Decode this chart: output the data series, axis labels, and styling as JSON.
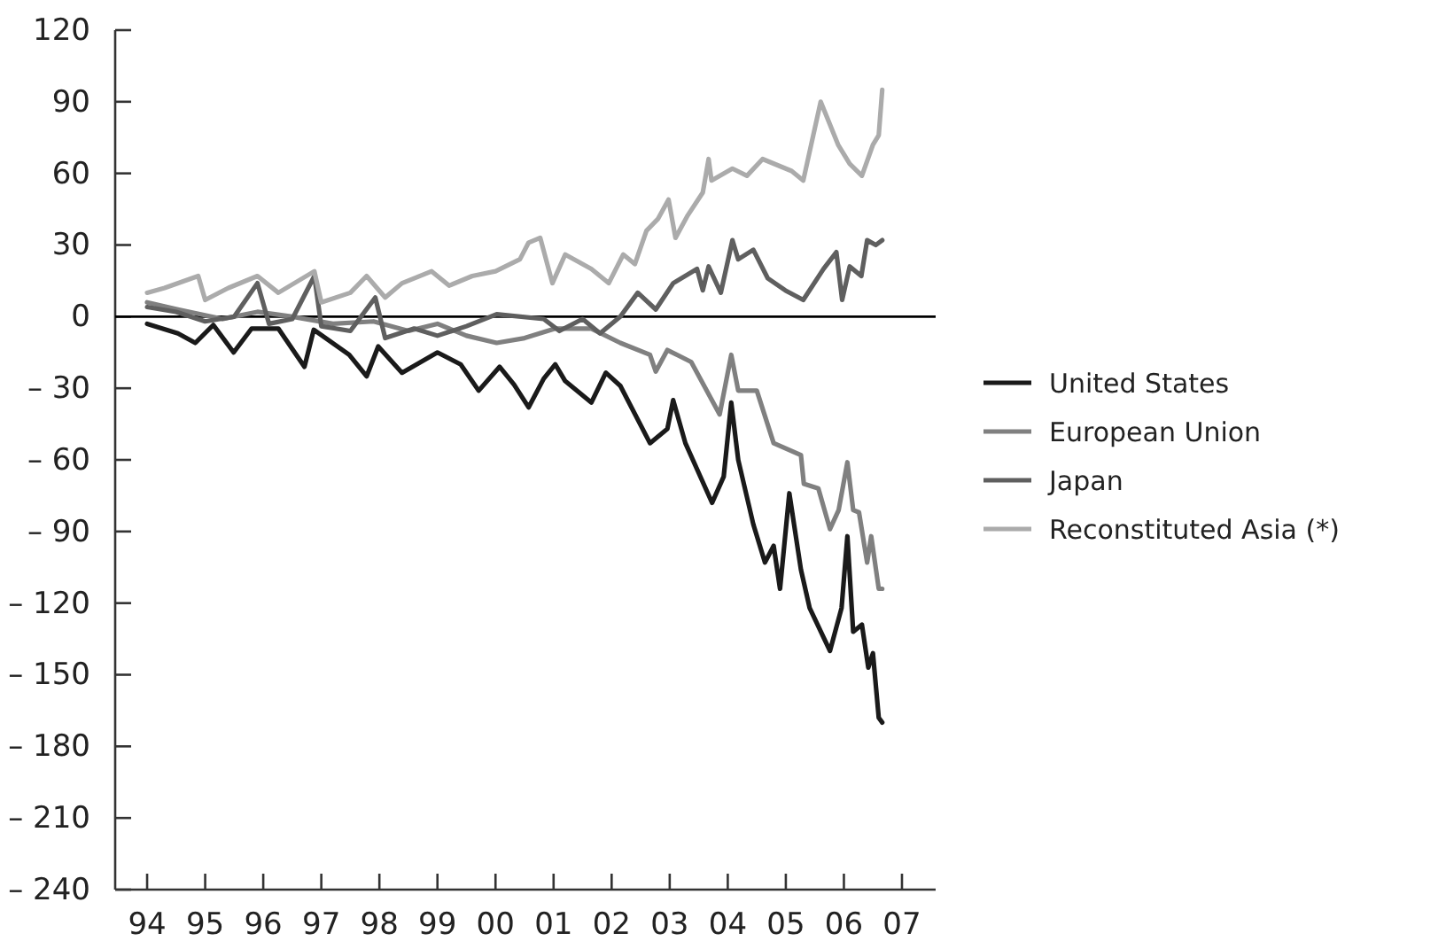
{
  "chart_data": {
    "type": "line",
    "xlim": [
      1993.45,
      2007.58
    ],
    "ylim": [
      -240,
      120
    ],
    "xticks": [
      {
        "value": 1994,
        "label": "94"
      },
      {
        "value": 1995,
        "label": "95"
      },
      {
        "value": 1996,
        "label": "96"
      },
      {
        "value": 1997,
        "label": "97"
      },
      {
        "value": 1998,
        "label": "98"
      },
      {
        "value": 1999,
        "label": "99"
      },
      {
        "value": 2000,
        "label": "00"
      },
      {
        "value": 2001,
        "label": "01"
      },
      {
        "value": 2002,
        "label": "02"
      },
      {
        "value": 2003,
        "label": "03"
      },
      {
        "value": 2004,
        "label": "04"
      },
      {
        "value": 2005,
        "label": "05"
      },
      {
        "value": 2006,
        "label": "06"
      },
      {
        "value": 2007,
        "label": "07"
      }
    ],
    "yticks": [
      {
        "value": -240,
        "label": "– 240"
      },
      {
        "value": -210,
        "label": "– 210"
      },
      {
        "value": -180,
        "label": "– 180"
      },
      {
        "value": -150,
        "label": "– 150"
      },
      {
        "value": -120,
        "label": "– 120"
      },
      {
        "value": -90,
        "label": "– 90"
      },
      {
        "value": -60,
        "label": "– 60"
      },
      {
        "value": -30,
        "label": "– 30"
      },
      0,
      30,
      60,
      90,
      120
    ],
    "ref_lines": [
      {
        "axis": "y",
        "value": 0,
        "color": "#000000"
      }
    ],
    "grid": false,
    "legend": "right",
    "line_style": "solid",
    "marker": "none",
    "series": [
      {
        "name": "United States",
        "color": "#1a1a1a",
        "x": [
          1994.0,
          1994.53,
          1994.83,
          1995.14,
          1995.49,
          1995.8,
          1996.26,
          1996.4,
          1996.71,
          1996.87,
          1997.48,
          1997.78,
          1997.98,
          1998.39,
          1999.0,
          1999.4,
          1999.71,
          2000.07,
          2000.32,
          2000.57,
          2000.83,
          2001.03,
          2001.2,
          2001.65,
          2001.9,
          2002.15,
          2002.66,
          2002.96,
          2003.06,
          2003.27,
          2003.73,
          2003.93,
          2004.06,
          2004.18,
          2004.44,
          2004.64,
          2004.79,
          2004.9,
          2005.06,
          2005.26,
          2005.41,
          2005.76,
          2005.96,
          2006.06,
          2006.16,
          2006.31,
          2006.42,
          2006.5,
          2006.6,
          2006.66
        ],
        "values": [
          -3,
          -7,
          -11,
          -3.5,
          -15,
          -5,
          -5,
          -10,
          -21,
          -5.5,
          -16,
          -25,
          -12.5,
          -23.5,
          -15,
          -20,
          -31,
          -21,
          -28.5,
          -38,
          -26,
          -20,
          -27,
          -36,
          -23.5,
          -29,
          -53,
          -47,
          -35,
          -53,
          -78,
          -67,
          -36,
          -60,
          -87,
          -103,
          -96,
          -114,
          -74,
          -106,
          -122,
          -140,
          -122,
          -92,
          -132,
          -129,
          -147,
          -141,
          -168,
          -170
        ]
      },
      {
        "name": "European Union",
        "color": "#808080",
        "x": [
          1994.0,
          1994.53,
          1995.3,
          1995.9,
          1996.5,
          1997.2,
          1997.9,
          1998.5,
          1999.0,
          1999.5,
          2000.02,
          2000.5,
          2001.03,
          2001.65,
          2002.15,
          2002.66,
          2002.76,
          2002.96,
          2003.37,
          2003.86,
          2004.06,
          2004.18,
          2004.5,
          2004.79,
          2005.26,
          2005.31,
          2005.56,
          2005.76,
          2005.91,
          2006.06,
          2006.16,
          2006.26,
          2006.4,
          2006.47,
          2006.6,
          2006.66
        ],
        "values": [
          6,
          3,
          -1,
          2,
          0,
          -3,
          -2,
          -6,
          -3,
          -8,
          -11,
          -9,
          -5,
          -5,
          -11,
          -16,
          -23,
          -14,
          -19,
          -41,
          -16,
          -31,
          -31,
          -53,
          -58,
          -70,
          -72,
          -89,
          -81,
          -61,
          -81,
          -82,
          -103,
          -92,
          -114,
          -114
        ]
      },
      {
        "name": "Japan",
        "color": "#5f5f5f",
        "x": [
          1994.0,
          1994.5,
          1995.0,
          1995.5,
          1995.9,
          1996.1,
          1996.5,
          1996.88,
          1997.0,
          1997.5,
          1997.93,
          1998.1,
          1998.6,
          1999.0,
          1999.5,
          2000.02,
          2000.83,
          2001.1,
          2001.5,
          2001.8,
          2002.15,
          2002.45,
          2002.76,
          2003.06,
          2003.47,
          2003.57,
          2003.67,
          2003.88,
          2004.08,
          2004.18,
          2004.44,
          2004.69,
          2004.99,
          2005.3,
          2005.65,
          2005.87,
          2005.97,
          2006.1,
          2006.3,
          2006.4,
          2006.55,
          2006.66
        ],
        "values": [
          4,
          2,
          -2,
          0,
          14,
          -3,
          -1,
          17,
          -4,
          -6,
          8,
          -9,
          -5,
          -8,
          -4,
          1,
          -1,
          -6,
          -1,
          -7,
          0,
          10,
          3,
          14,
          20,
          11,
          21,
          10,
          32,
          24,
          28,
          16,
          11,
          7,
          20,
          27,
          7,
          21,
          17,
          32,
          30,
          32
        ]
      },
      {
        "name": "Reconstituted Asia (*)",
        "color": "#ababab",
        "x": [
          1994.0,
          1994.3,
          1994.88,
          1995.0,
          1995.4,
          1995.9,
          1996.26,
          1996.88,
          1997.0,
          1997.5,
          1997.78,
          1998.1,
          1998.39,
          1998.9,
          1999.2,
          1999.6,
          2000.0,
          2000.42,
          2000.57,
          2000.77,
          2000.98,
          2001.2,
          2001.65,
          2001.95,
          2002.2,
          2002.4,
          2002.6,
          2002.8,
          2002.98,
          2003.1,
          2003.3,
          2003.57,
          2003.67,
          2003.72,
          2004.08,
          2004.33,
          2004.6,
          2005.1,
          2005.3,
          2005.6,
          2005.9,
          2006.1,
          2006.31,
          2006.5,
          2006.6,
          2006.66
        ],
        "values": [
          10,
          12,
          17,
          7,
          12,
          17,
          10,
          19,
          6,
          10,
          17,
          8,
          14,
          19,
          13,
          17,
          19,
          24,
          31,
          33,
          14,
          26,
          20,
          14,
          26,
          22,
          36,
          41,
          49,
          33,
          42,
          52,
          66,
          57,
          62,
          59,
          66,
          61,
          57,
          90,
          72,
          64,
          59,
          72,
          76,
          95
        ]
      }
    ]
  }
}
